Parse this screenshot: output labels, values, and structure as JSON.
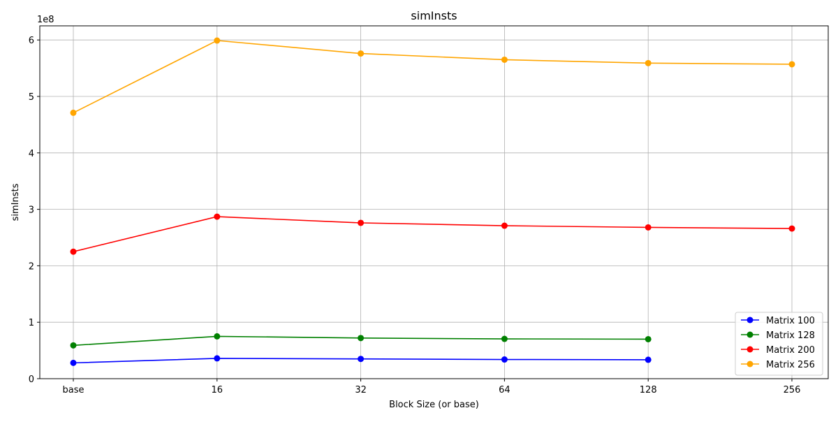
{
  "chart_data": {
    "type": "line",
    "title": "simInsts",
    "xlabel": "Block Size (or base)",
    "ylabel": "simInsts",
    "y_exponent_label": "1e8",
    "categories": [
      "base",
      "16",
      "32",
      "64",
      "128",
      "256"
    ],
    "ylim": [
      0,
      6.25
    ],
    "yticks": [
      0,
      1,
      2,
      3,
      4,
      5,
      6
    ],
    "y_scale_factor": 100000000,
    "grid": true,
    "legend_position": "lower right",
    "series": [
      {
        "name": "Matrix 100",
        "color": "#0000ff",
        "values": [
          0.28,
          0.36,
          0.35,
          0.34,
          0.335,
          null
        ]
      },
      {
        "name": "Matrix 128",
        "color": "#008000",
        "values": [
          0.59,
          0.75,
          0.72,
          0.705,
          0.7,
          null
        ]
      },
      {
        "name": "Matrix 200",
        "color": "#ff0000",
        "values": [
          2.25,
          2.87,
          2.76,
          2.71,
          2.68,
          2.66
        ]
      },
      {
        "name": "Matrix 256",
        "color": "#ffa500",
        "values": [
          4.71,
          5.99,
          5.76,
          5.65,
          5.59,
          5.57
        ]
      }
    ]
  }
}
